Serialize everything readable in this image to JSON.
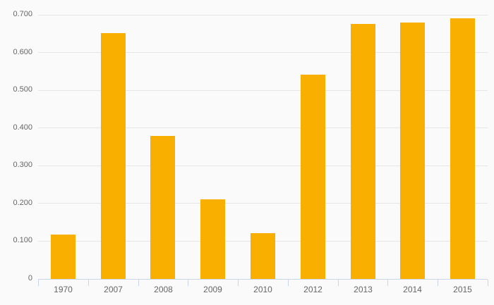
{
  "chart_data": {
    "type": "bar",
    "title": "",
    "xlabel": "",
    "ylabel": "",
    "categories": [
      "1970",
      "2007",
      "2008",
      "2009",
      "2010",
      "2012",
      "2013",
      "2014",
      "2015"
    ],
    "values": [
      0.117,
      0.651,
      0.378,
      0.211,
      0.122,
      0.541,
      0.675,
      0.679,
      0.69
    ],
    "ylim": [
      0,
      0.7
    ],
    "ytick_interval": 0.1,
    "ytick_labels": [
      "0",
      "0.100",
      "0.200",
      "0.300",
      "0.400",
      "0.500",
      "0.600",
      "0.700"
    ],
    "grid": true,
    "legend": false,
    "colors": {
      "bar": "#f9af00",
      "background": "#fafafa",
      "gridline": "#e6e6e6",
      "axis_line": "#ccd6eb",
      "label_text": "#666666"
    }
  }
}
